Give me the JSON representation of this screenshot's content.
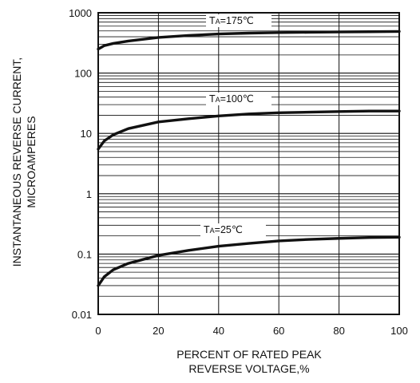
{
  "chart_data": {
    "type": "line",
    "title": "",
    "xlabel_lines": [
      "PERCENT OF RATED PEAK",
      "REVERSE VOLTAGE,%"
    ],
    "ylabel_lines": [
      "INSTANTANEOUS REVERSE CURRENT,",
      "MICROAMPERES"
    ],
    "x_ticks": [
      "0",
      "20",
      "40",
      "60",
      "80",
      "100"
    ],
    "y_ticks": [
      "0.01",
      "0.1",
      "1",
      "10",
      "100",
      "1000"
    ],
    "xlim": [
      0,
      100
    ],
    "ylim": [
      0.01,
      1000
    ],
    "y_scale": "log",
    "grid": true,
    "series": [
      {
        "label_main": "T",
        "label_sub": "A",
        "label_rest": "=175℃",
        "x": [
          0,
          2,
          5,
          10,
          20,
          30,
          40,
          50,
          60,
          70,
          80,
          90,
          100
        ],
        "y": [
          250,
          285,
          310,
          340,
          390,
          420,
          445,
          460,
          470,
          475,
          480,
          485,
          490
        ]
      },
      {
        "label_main": "T",
        "label_sub": "A",
        "label_rest": "=100℃",
        "x": [
          0,
          2,
          5,
          10,
          20,
          30,
          40,
          50,
          60,
          70,
          80,
          90,
          100
        ],
        "y": [
          5.5,
          7.5,
          9.5,
          12,
          15.5,
          17.5,
          19.5,
          21,
          22,
          22.5,
          23,
          23.5,
          23.5
        ]
      },
      {
        "label_main": "T",
        "label_sub": "A",
        "label_rest": "=25℃",
        "x": [
          0,
          2,
          5,
          10,
          20,
          30,
          40,
          50,
          60,
          70,
          80,
          90,
          100
        ],
        "y": [
          0.03,
          0.042,
          0.055,
          0.07,
          0.095,
          0.115,
          0.135,
          0.15,
          0.165,
          0.175,
          0.182,
          0.188,
          0.19
        ]
      }
    ]
  }
}
